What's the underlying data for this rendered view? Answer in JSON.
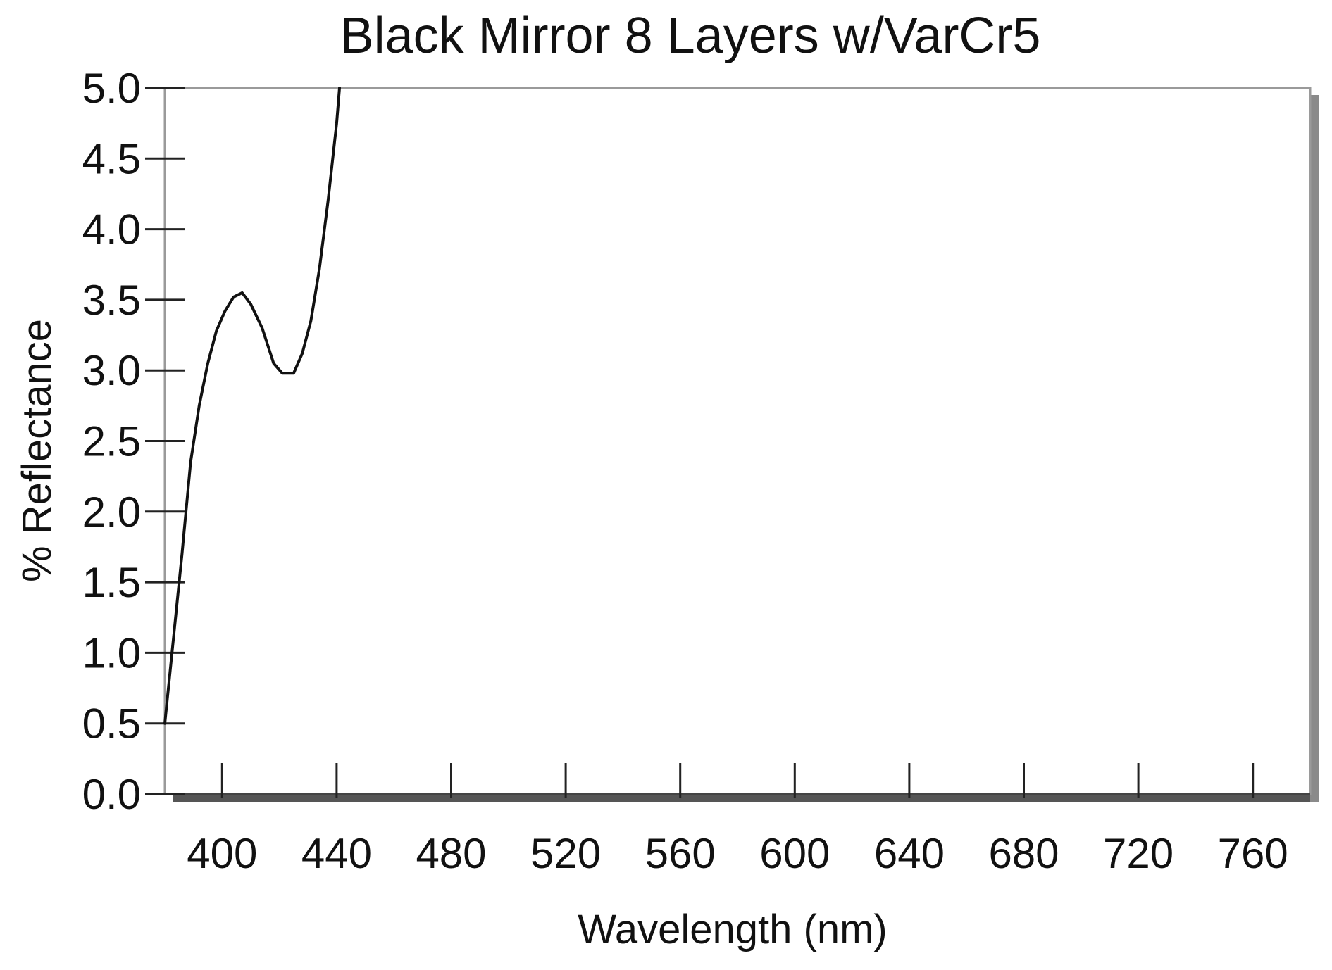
{
  "chart_data": {
    "type": "line",
    "title": "Black Mirror 8 Layers w/VarCr5",
    "xlabel": "Wavelength (nm)",
    "ylabel": "% Reflectance",
    "xlim": [
      380,
      780
    ],
    "ylim": [
      0.0,
      5.0
    ],
    "x_ticks": [
      400,
      440,
      480,
      520,
      560,
      600,
      640,
      680,
      720,
      760
    ],
    "x_tick_labels": [
      "400",
      "440",
      "480",
      "520",
      "560",
      "600",
      "640",
      "680",
      "720",
      "760"
    ],
    "y_ticks": [
      0.0,
      0.5,
      1.0,
      1.5,
      2.0,
      2.5,
      3.0,
      3.5,
      4.0,
      4.5,
      5.0
    ],
    "y_tick_labels": [
      "0.0",
      "0.5",
      "1.0",
      "1.5",
      "2.0",
      "2.5",
      "3.0",
      "3.5",
      "4.0",
      "4.5",
      "5.0"
    ],
    "grid": false,
    "legend": "none",
    "series": [
      {
        "color": "#111111",
        "x": [
          380,
          383,
          386,
          389,
          392,
          395,
          398,
          401,
          404,
          407,
          410,
          414,
          418,
          421,
          425,
          428,
          431,
          434,
          437,
          440,
          441
        ],
        "y": [
          0.5,
          1.1,
          1.7,
          2.35,
          2.75,
          3.05,
          3.28,
          3.42,
          3.52,
          3.55,
          3.47,
          3.3,
          3.05,
          2.98,
          2.98,
          3.12,
          3.35,
          3.72,
          4.2,
          4.75,
          5.0
        ]
      }
    ]
  }
}
